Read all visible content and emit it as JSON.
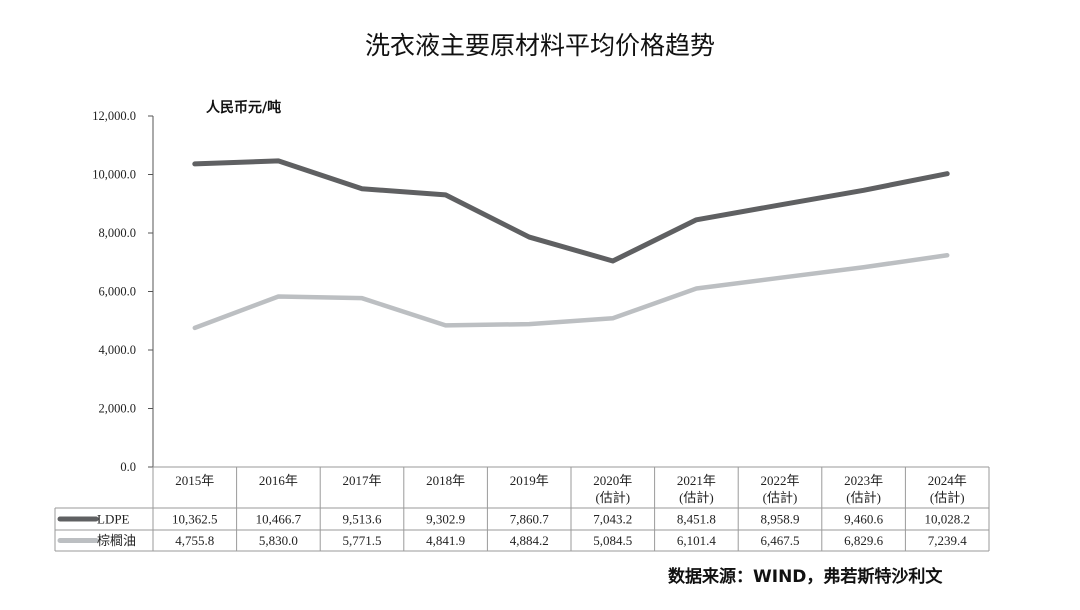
{
  "title": "洗衣液主要原材料平均价格趋势",
  "unit_label": "人民币元/吨",
  "source": "数据来源：WIND，弗若斯特沙利文",
  "chart_data": {
    "type": "line",
    "categories": [
      [
        "2015年"
      ],
      [
        "2016年"
      ],
      [
        "2017年"
      ],
      [
        "2018年"
      ],
      [
        "2019年"
      ],
      [
        "2020年",
        "(估計)"
      ],
      [
        "2021年",
        "(估計)"
      ],
      [
        "2022年",
        "(估計)"
      ],
      [
        "2023年",
        "(估計)"
      ],
      [
        "2024年",
        "(估計)"
      ]
    ],
    "ylim": [
      0,
      12000
    ],
    "yticks": [
      {
        "value": 0,
        "label": "0.0"
      },
      {
        "value": 2000,
        "label": "2,000.0"
      },
      {
        "value": 4000,
        "label": "4,000.0"
      },
      {
        "value": 6000,
        "label": "6,000.0"
      },
      {
        "value": 8000,
        "label": "8,000.0"
      },
      {
        "value": 10000,
        "label": "10,000.0"
      },
      {
        "value": 12000,
        "label": "12,000.0"
      }
    ],
    "grid": false,
    "series": [
      {
        "name": "LDPE",
        "color": "#5f6062",
        "values": [
          10362.5,
          10466.7,
          9513.6,
          9302.9,
          7860.7,
          7043.2,
          8451.8,
          8958.9,
          9460.6,
          10028.2
        ],
        "labels": [
          "10,362.5",
          "10,466.7",
          "9,513.6",
          "9,302.9",
          "7,860.7",
          "7,043.2",
          "8,451.8",
          "8,958.9",
          "9,460.6",
          "10,028.2"
        ]
      },
      {
        "name": "棕櫚油",
        "color": "#bcbfc2",
        "values": [
          4755.8,
          5830.0,
          5771.5,
          4841.9,
          4884.2,
          5084.5,
          6101.4,
          6467.5,
          6829.6,
          7239.4
        ],
        "labels": [
          "4,755.8",
          "5,830.0",
          "5,771.5",
          "4,841.9",
          "4,884.2",
          "5,084.5",
          "6,101.4",
          "6,467.5",
          "6,829.6",
          "7,239.4"
        ]
      }
    ]
  }
}
